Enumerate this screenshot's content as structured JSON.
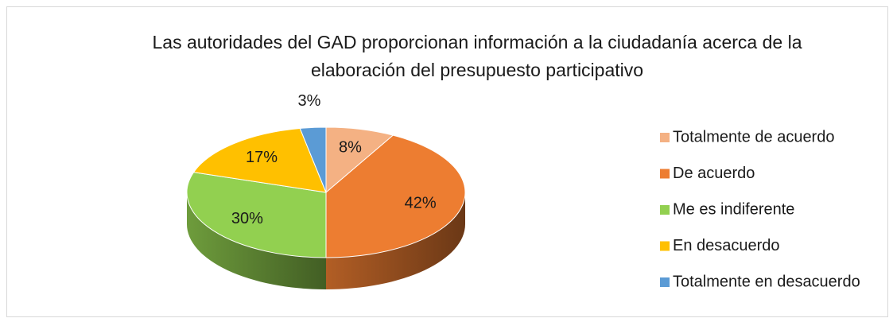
{
  "chart_data": {
    "type": "pie",
    "title": "Las autoridades del GAD proporcionan información a la ciudadanía acerca de la elaboración del presupuesto participativo",
    "categories": [
      "Totalmente de acuerdo",
      "De acuerdo",
      "Me es indiferente",
      "En desacuerdo",
      "Totalmente en desacuerdo"
    ],
    "values": [
      8,
      42,
      30,
      17,
      3
    ],
    "value_labels": [
      "8%",
      "42%",
      "30%",
      "17%",
      "3%"
    ],
    "colors": [
      "#f4b183",
      "#ed7d31",
      "#92d050",
      "#ffc000",
      "#5b9bd5"
    ],
    "legend": "right"
  }
}
